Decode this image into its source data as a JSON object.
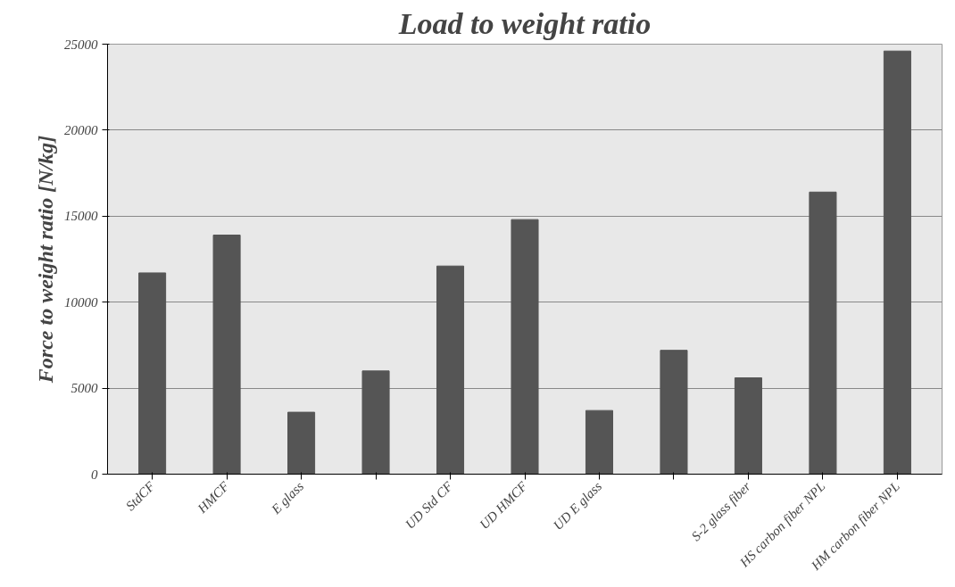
{
  "chart_data": {
    "type": "bar",
    "title": "Load to weight ratio",
    "ylabel": "Force to weight ratio [N/kg]",
    "categories": [
      "StdCF",
      "HMCF",
      "E glass",
      null,
      "UD Std CF",
      "UD HMCF",
      "UD E glass",
      null,
      "S-2 glass fiber",
      "HS carbon fiber NPL",
      "HM carbon fiber NPL"
    ],
    "values": [
      11700,
      13900,
      3600,
      6000,
      12100,
      14800,
      3700,
      7200,
      5600,
      16400,
      24600
    ],
    "color": "#555555",
    "ylim": [
      0,
      25000
    ],
    "yticks": [
      0,
      5000,
      10000,
      15000,
      20000,
      25000
    ],
    "grid": "y"
  }
}
